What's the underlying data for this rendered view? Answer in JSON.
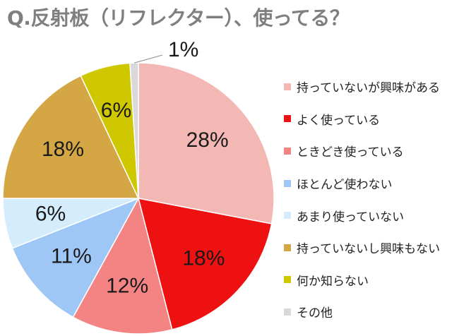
{
  "chart_data": {
    "type": "pie",
    "title": "Q.反射板（リフレクター）、使ってる？",
    "start_angle_deg": 0,
    "direction": "clockwise",
    "legend_position": "right",
    "slices": [
      {
        "label": "持っていないが興味がある",
        "value": 28,
        "display": "28%",
        "color": "#f4b8b4"
      },
      {
        "label": "よく使っている",
        "value": 18,
        "display": "18%",
        "color": "#ee1111"
      },
      {
        "label": "ときどき使っている",
        "value": 12,
        "display": "12%",
        "color": "#f48484"
      },
      {
        "label": "ほとんど使わない",
        "value": 11,
        "display": "11%",
        "color": "#9ec7f5"
      },
      {
        "label": "あまり使っていない",
        "value": 6,
        "display": "6%",
        "color": "#d4ecfc"
      },
      {
        "label": "持っていないし興味もない",
        "value": 18,
        "display": "18%",
        "color": "#d4a644"
      },
      {
        "label": "何か知らない",
        "value": 6,
        "display": "6%",
        "color": "#cfc800"
      },
      {
        "label": "その他",
        "value": 1,
        "display": "1%",
        "color": "#d9d9d9"
      }
    ]
  }
}
